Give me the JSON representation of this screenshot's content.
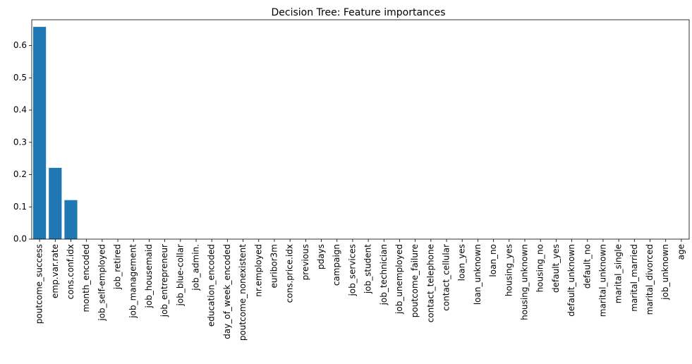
{
  "chart_data": {
    "type": "bar",
    "title": "Decision Tree: Feature importances",
    "xlabel": "",
    "ylabel": "",
    "ylim": [
      0,
      0.68
    ],
    "yticks": [
      0.0,
      0.1,
      0.2,
      0.3,
      0.4,
      0.5,
      0.6
    ],
    "ytick_labels": [
      "0.0",
      "0.1",
      "0.2",
      "0.3",
      "0.4",
      "0.5",
      "0.6"
    ],
    "bar_color": "#1f77b4",
    "grid": false,
    "categories": [
      "poutcome_success",
      "emp.var.rate",
      "cons.conf.idx",
      "month_encoded",
      "job_self-employed",
      "job_retired",
      "job_management",
      "job_housemaid",
      "job_entrepreneur",
      "job_blue-collar",
      "job_admin.",
      "education_encoded",
      "day_of_week_encoded",
      "poutcome_nonexistent",
      "nr.employed",
      "euribor3m",
      "cons.price.idx",
      "previous",
      "pdays",
      "campaign",
      "job_services",
      "job_student",
      "job_technician",
      "job_unemployed",
      "poutcome_failure",
      "contact_telephone",
      "contact_cellular",
      "loan_yes",
      "loan_unknown",
      "loan_no",
      "housing_yes",
      "housing_unknown",
      "housing_no",
      "default_yes",
      "default_unknown",
      "default_no",
      "marital_unknown",
      "marital_single",
      "marital_married",
      "marital_divorced",
      "job_unknown",
      "age"
    ],
    "values": [
      0.658,
      0.221,
      0.121,
      0,
      0,
      0,
      0,
      0,
      0,
      0,
      0,
      0,
      0,
      0,
      0,
      0,
      0,
      0,
      0,
      0,
      0,
      0,
      0,
      0,
      0,
      0,
      0,
      0,
      0,
      0,
      0,
      0,
      0,
      0,
      0,
      0,
      0,
      0,
      0,
      0,
      0,
      0
    ]
  }
}
